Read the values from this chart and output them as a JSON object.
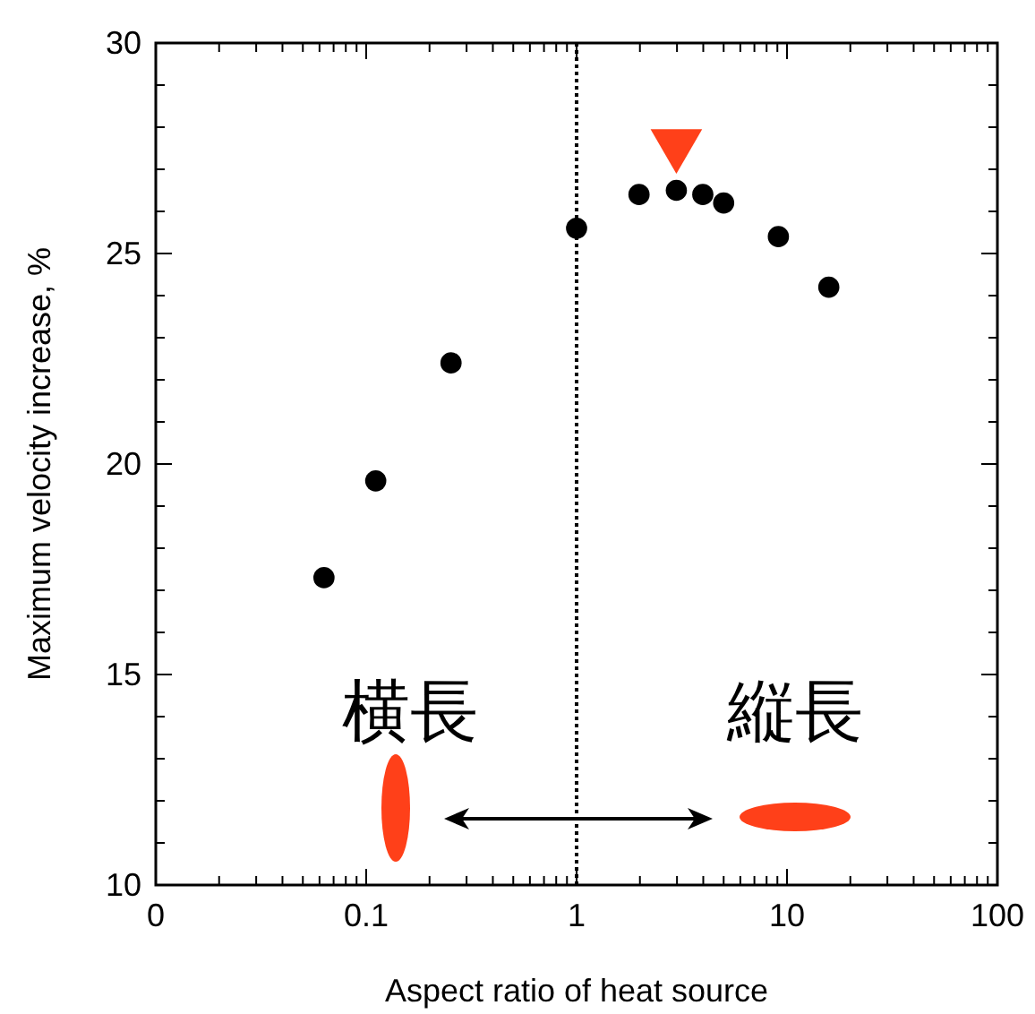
{
  "chart_data": {
    "type": "scatter",
    "xlabel": "Aspect ratio of heat source",
    "ylabel": "Maximum velocity increase, %",
    "log": "x",
    "xlim": [
      0.01,
      100
    ],
    "ylim": [
      10,
      30
    ],
    "xticks": [
      {
        "value": 0.01,
        "label": "0"
      },
      {
        "value": 0.02,
        "label": null
      },
      {
        "value": 0.03,
        "label": null
      },
      {
        "value": 0.04,
        "label": null
      },
      {
        "value": 0.05,
        "label": null
      },
      {
        "value": 0.06,
        "label": null
      },
      {
        "value": 0.07,
        "label": null
      },
      {
        "value": 0.08,
        "label": null
      },
      {
        "value": 0.09,
        "label": null
      },
      0.1,
      {
        "value": 0.2,
        "label": null
      },
      {
        "value": 0.3,
        "label": null
      },
      {
        "value": 0.4,
        "label": null
      },
      {
        "value": 0.5,
        "label": null
      },
      {
        "value": 0.6,
        "label": null
      },
      {
        "value": 0.7,
        "label": null
      },
      {
        "value": 0.8,
        "label": null
      },
      {
        "value": 0.9,
        "label": null
      },
      1,
      {
        "value": 2,
        "label": null
      },
      {
        "value": 3,
        "label": null
      },
      {
        "value": 4,
        "label": null
      },
      {
        "value": 5,
        "label": null
      },
      {
        "value": 6,
        "label": null
      },
      {
        "value": 7,
        "label": null
      },
      {
        "value": 8,
        "label": null
      },
      {
        "value": 9,
        "label": null
      },
      10,
      {
        "value": 20,
        "label": null
      },
      {
        "value": 30,
        "label": null
      },
      {
        "value": 40,
        "label": null
      },
      {
        "value": 50,
        "label": null
      },
      {
        "value": 60,
        "label": null
      },
      {
        "value": 70,
        "label": null
      },
      {
        "value": 80,
        "label": null
      },
      {
        "value": 90,
        "label": null
      },
      100
    ],
    "yticks": [
      10,
      {
        "value": 11,
        "label": null
      },
      {
        "value": 12,
        "label": null
      },
      {
        "value": 13,
        "label": null
      },
      {
        "value": 14,
        "label": null
      },
      15,
      {
        "value": 16,
        "label": null
      },
      {
        "value": 17,
        "label": null
      },
      {
        "value": 18,
        "label": null
      },
      {
        "value": 19,
        "label": null
      },
      20,
      {
        "value": 21,
        "label": null
      },
      {
        "value": 22,
        "label": null
      },
      {
        "value": 23,
        "label": null
      },
      {
        "value": 24,
        "label": null
      },
      25,
      {
        "value": 26,
        "label": null
      },
      {
        "value": 27,
        "label": null
      },
      {
        "value": 28,
        "label": null
      },
      {
        "value": 29,
        "label": null
      },
      30
    ],
    "grid": false,
    "series": [
      {
        "color": "#000000",
        "marker": "circle",
        "x": [
          0.063,
          0.111,
          0.253,
          1.0,
          1.98,
          2.98,
          3.98,
          5.0,
          9.1,
          15.8
        ],
        "values": [
          17.3,
          19.6,
          22.4,
          25.6,
          26.4,
          26.5,
          26.4,
          26.2,
          25.4,
          24.2
        ]
      },
      {
        "color": "#ff4019",
        "marker": "triangle",
        "x": [
          2.98
        ],
        "values": [
          27.6
        ]
      }
    ],
    "ref_lines": [
      {
        "axis": "x",
        "value": 1,
        "line_style": "dotted",
        "color": "#000000"
      }
    ],
    "annotations": [
      "横長",
      "縦長"
    ]
  }
}
